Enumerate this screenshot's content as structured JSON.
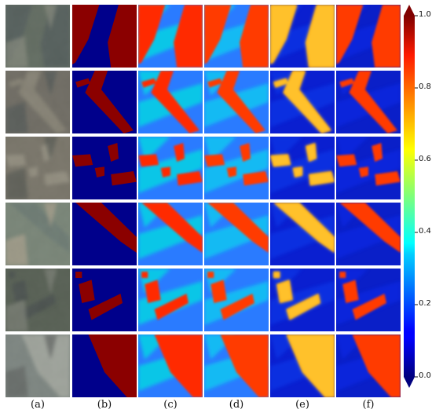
{
  "figure": {
    "panel_labels": [
      "(a)",
      "(b)",
      "(c)",
      "(d)",
      "(e)",
      "(f)"
    ],
    "rows": 6,
    "colorbar": {
      "colormap": "jet",
      "ticks": [
        "0.0",
        "0.2",
        "0.4",
        "0.6",
        "0.8",
        "1.0"
      ],
      "tick_values": [
        0.0,
        0.2,
        0.4,
        0.6,
        0.8,
        1.0
      ],
      "range": [
        0.0,
        1.0
      ],
      "extend": "both"
    },
    "colors": {
      "mask_foreground": "#8b0000",
      "mask_background": "#00008b"
    }
  }
}
